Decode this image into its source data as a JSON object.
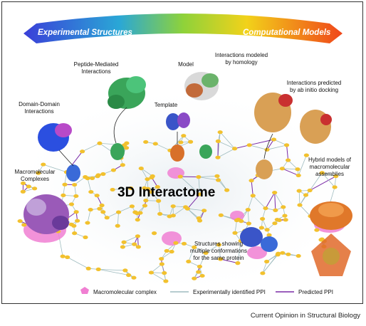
{
  "header": {
    "left_label": "Experimental Structures",
    "right_label": "Computational Models"
  },
  "center_title": "3D Interactome",
  "labels": {
    "peptide": [
      "Peptide-Mediated",
      "Interactions"
    ],
    "model": "Model",
    "homology": [
      "Interactions modeled",
      "by homology"
    ],
    "abinitio": [
      "Interactions predicted",
      "by ab initio docking"
    ],
    "domain": [
      "Domain-Domain",
      "Interactions"
    ],
    "template": "Template",
    "macromolecular": [
      "Macromolecular",
      "Complexes"
    ],
    "hybrid": [
      "Hybrid models of",
      "macromolecular",
      "assemblies"
    ],
    "conformations": [
      "Structures showing",
      "multiple conformations",
      "for the same protein"
    ]
  },
  "legend": {
    "complex": "Macromolecular complex",
    "experimental": "Experimentally identified PPI",
    "predicted": "Predicted PPI"
  },
  "colors": {
    "node": "#f2c12e",
    "complex": "#f07fd2",
    "experimental_edge": "#9fbcbf",
    "predicted_edge": "#7a2aa6"
  },
  "credit": "Current Opinion in Structural Biology"
}
